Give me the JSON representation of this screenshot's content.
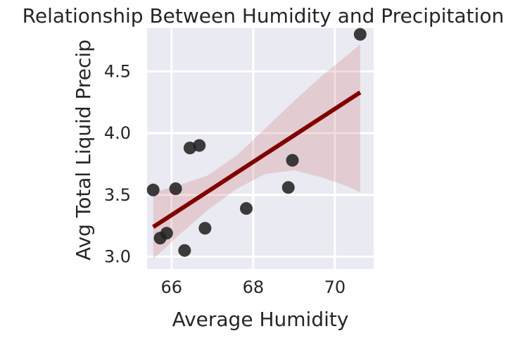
{
  "chart_data": {
    "type": "scatter",
    "title": "Relationship Between Humidity and Precipitation",
    "xlabel": "Average Humidity",
    "ylabel": "Avg Total Liquid Precip",
    "xlim": [
      65.4,
      70.95
    ],
    "ylim": [
      2.9,
      4.85
    ],
    "xticks": [
      66,
      68,
      70
    ],
    "yticks": [
      3.0,
      3.5,
      4.0,
      4.5
    ],
    "xtick_labels": [
      "66",
      "68",
      "70"
    ],
    "ytick_labels": [
      "3.0",
      "3.5",
      "4.0",
      "4.5"
    ],
    "grid": true,
    "points": [
      {
        "x": 65.55,
        "y": 3.54
      },
      {
        "x": 65.72,
        "y": 3.15
      },
      {
        "x": 65.88,
        "y": 3.19
      },
      {
        "x": 66.1,
        "y": 3.55
      },
      {
        "x": 66.32,
        "y": 3.05
      },
      {
        "x": 66.45,
        "y": 3.88
      },
      {
        "x": 66.68,
        "y": 3.9
      },
      {
        "x": 66.82,
        "y": 3.23
      },
      {
        "x": 67.83,
        "y": 3.39
      },
      {
        "x": 68.86,
        "y": 3.56
      },
      {
        "x": 68.96,
        "y": 3.78
      },
      {
        "x": 70.62,
        "y": 4.8
      }
    ],
    "regression": {
      "x_range": [
        65.55,
        70.62
      ],
      "y_start": 3.24,
      "y_end": 4.33
    },
    "confidence_band": [
      {
        "x": 65.55,
        "lo": 2.98,
        "hi": 3.52
      },
      {
        "x": 66.2,
        "lo": 3.18,
        "hi": 3.58
      },
      {
        "x": 66.9,
        "lo": 3.38,
        "hi": 3.66
      },
      {
        "x": 67.6,
        "lo": 3.55,
        "hi": 3.82
      },
      {
        "x": 68.3,
        "lo": 3.67,
        "hi": 4.04
      },
      {
        "x": 69.0,
        "lo": 3.7,
        "hi": 4.26
      },
      {
        "x": 69.7,
        "lo": 3.64,
        "hi": 4.47
      },
      {
        "x": 70.3,
        "lo": 3.57,
        "hi": 4.63
      },
      {
        "x": 70.62,
        "lo": 3.52,
        "hi": 4.72
      }
    ],
    "colors": {
      "background": "#EAEAF2",
      "grid": "#FFFFFF",
      "points": "#222222",
      "regression_line": "#800000",
      "confidence_band": "#C44E52"
    }
  }
}
